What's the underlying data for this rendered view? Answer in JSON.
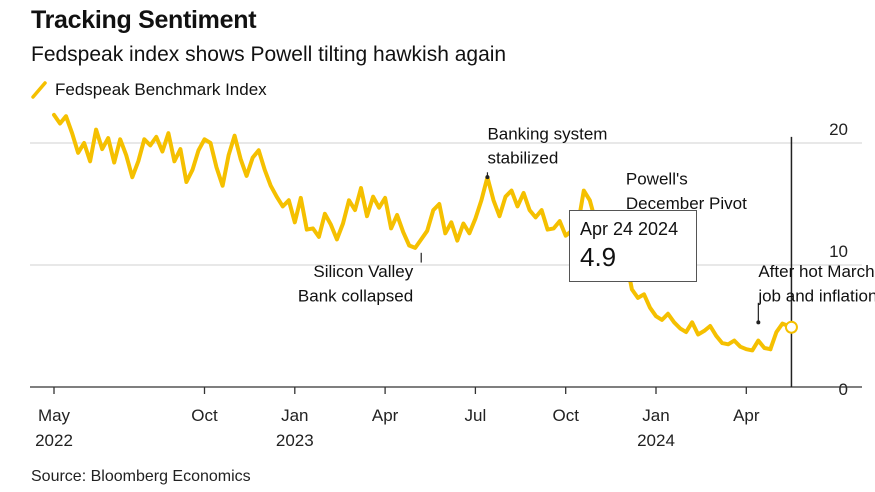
{
  "title": "Tracking Sentiment",
  "subtitle": "Fedspeak index shows Powell tilting hawkish again",
  "source": "Source: Bloomberg Economics",
  "colors": {
    "line": "#F5C000",
    "grid": "#D9D9D9",
    "axis": "#333333",
    "cursor": "#222222"
  },
  "tooltip": {
    "date": "Apr 24 2024",
    "value": "4.9"
  },
  "chart_data": {
    "type": "line",
    "title": "Tracking Sentiment",
    "subtitle": "Fedspeak index shows Powell tilting hawkish again",
    "legend": [
      "Fedspeak Benchmark Index"
    ],
    "legend_position": "top-left",
    "xlabel": "",
    "ylabel": "",
    "ylim": [
      0,
      20
    ],
    "yticks": [
      0,
      10,
      20
    ],
    "ytick_labels": [
      "0",
      "10",
      "20"
    ],
    "y_axis_side": "right",
    "grid": true,
    "x_unit": "months since May 2022",
    "xlim": [
      -0.3,
      27.2
    ],
    "xticks": [
      {
        "x": 0,
        "label": "May",
        "sub": "2022"
      },
      {
        "x": 5,
        "label": "Oct",
        "sub": ""
      },
      {
        "x": 8,
        "label": "Jan",
        "sub": "2023"
      },
      {
        "x": 11,
        "label": "Apr",
        "sub": ""
      },
      {
        "x": 14,
        "label": "Jul",
        "sub": ""
      },
      {
        "x": 17,
        "label": "Oct",
        "sub": ""
      },
      {
        "x": 20,
        "label": "Jan",
        "sub": "2024"
      },
      {
        "x": 23,
        "label": "Apr",
        "sub": ""
      }
    ],
    "series": [
      {
        "name": "Fedspeak Benchmark Index",
        "x": [
          0.0,
          0.2,
          0.4,
          0.6,
          0.8,
          1.0,
          1.2,
          1.4,
          1.6,
          1.8,
          2.0,
          2.2,
          2.4,
          2.6,
          2.8,
          3.0,
          3.2,
          3.4,
          3.6,
          3.8,
          4.0,
          4.2,
          4.4,
          4.6,
          4.8,
          5.0,
          5.2,
          5.4,
          5.6,
          5.8,
          6.0,
          6.2,
          6.4,
          6.6,
          6.8,
          7.0,
          7.2,
          7.4,
          7.6,
          7.8,
          8.0,
          8.2,
          8.4,
          8.6,
          8.8,
          9.0,
          9.2,
          9.4,
          9.6,
          9.8,
          10.0,
          10.2,
          10.4,
          10.6,
          10.8,
          11.0,
          11.2,
          11.4,
          11.6,
          11.8,
          12.0,
          12.2,
          12.4,
          12.6,
          12.8,
          13.0,
          13.2,
          13.4,
          13.6,
          13.8,
          14.0,
          14.2,
          14.4,
          14.6,
          14.8,
          15.0,
          15.2,
          15.4,
          15.6,
          15.8,
          16.0,
          16.2,
          16.4,
          16.6,
          16.8,
          17.0,
          17.2,
          17.4,
          17.6,
          17.8,
          18.0,
          18.2,
          18.4,
          18.6,
          18.8,
          19.0,
          19.2,
          19.4,
          19.6,
          19.8,
          20.0,
          20.2,
          20.4,
          20.6,
          20.8,
          21.0,
          21.2,
          21.4,
          21.6,
          21.8,
          22.0,
          22.2,
          22.4,
          22.6,
          22.8,
          23.0,
          23.2,
          23.4,
          23.6,
          23.8
        ],
        "values": [
          22.3,
          21.6,
          22.2,
          20.8,
          19.2,
          20.0,
          18.5,
          21.1,
          19.5,
          20.4,
          18.4,
          20.3,
          19.0,
          17.2,
          18.5,
          20.3,
          19.8,
          20.5,
          19.3,
          20.8,
          18.5,
          19.5,
          16.8,
          17.8,
          19.4,
          20.3,
          20.0,
          18.0,
          16.5,
          19.0,
          20.6,
          18.7,
          17.3,
          18.8,
          19.4,
          17.8,
          16.5,
          15.6,
          14.8,
          15.3,
          13.5,
          15.5,
          12.9,
          13.0,
          12.3,
          14.2,
          13.3,
          12.1,
          13.4,
          15.3,
          14.5,
          16.3,
          14.0,
          15.6,
          14.7,
          15.5,
          13.0,
          14.1,
          12.7,
          11.6,
          11.4,
          12.1,
          12.8,
          14.5,
          15.0,
          12.6,
          13.5,
          12.0,
          13.4,
          12.6,
          13.8,
          15.3,
          17.2,
          15.3,
          14.0,
          15.6,
          16.1,
          14.8,
          15.9,
          14.5,
          13.9,
          14.5,
          12.9,
          13.0,
          13.6,
          12.4,
          12.8,
          13.2,
          16.1,
          15.3,
          13.5,
          12.5,
          11.7,
          13.0,
          12.2,
          10.5,
          8.0,
          7.3,
          7.6,
          6.5,
          5.8,
          5.5,
          6.0,
          5.3,
          4.8,
          4.5,
          5.3,
          4.3,
          4.6,
          5.0,
          4.2,
          3.6,
          3.5,
          3.8,
          3.3,
          3.1,
          3.0,
          3.8,
          3.2,
          3.1
        ]
      },
      {
        "name": "Fedspeak Benchmark Index (latest)",
        "x": [
          23.8,
          24.0,
          24.2,
          24.5
        ],
        "values": [
          3.1,
          4.5,
          5.2,
          4.9
        ]
      }
    ],
    "cursor": {
      "x": 24.5,
      "y": 4.9,
      "date_label": "Apr 24 2024",
      "value_label": "4.9"
    },
    "annotations": [
      {
        "text": "Silicon Valley",
        "text2": "Bank collapsed",
        "x": 12.2,
        "y": 10.0,
        "y_text": 9.0,
        "y_text2": 7.0,
        "anchor": "end",
        "leader": [
          10.2,
          11.0
        ]
      },
      {
        "text": "Banking system",
        "text2": "stabilized",
        "x": 14.4,
        "y": 17.2,
        "y_text": 20.3,
        "y_text2": 18.3,
        "anchor": "start",
        "leader": [
          17.2,
          17.6
        ]
      },
      {
        "text": "Powell's",
        "text2": "December Pivot",
        "x": 19.0,
        "y": 14.2,
        "y_text": 16.6,
        "y_text2": 14.6,
        "anchor": "start"
      },
      {
        "text": "After hot March",
        "text2": "job and inflation",
        "x": 23.4,
        "y": 5.3,
        "y_text": 9.0,
        "y_text2": 7.0,
        "anchor": "start",
        "leader": [
          5.4,
          6.9
        ]
      }
    ]
  }
}
